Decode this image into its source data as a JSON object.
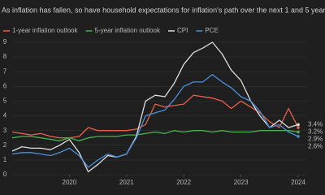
{
  "chart_data": {
    "type": "line",
    "subtitle": "As inflation has fallen, so have household expectations for inflation's path over the next 1 and 5 years.",
    "x": [
      2019,
      2019.17,
      2019.33,
      2019.5,
      2019.67,
      2019.83,
      2020,
      2020.17,
      2020.33,
      2020.5,
      2020.67,
      2020.83,
      2021,
      2021.17,
      2021.33,
      2021.5,
      2021.67,
      2021.83,
      2022,
      2022.17,
      2022.33,
      2022.5,
      2022.67,
      2022.83,
      2023,
      2023.17,
      2023.33,
      2023.5,
      2023.67,
      2023.83,
      2024
    ],
    "xlim": [
      2019,
      2024.15
    ],
    "xticks": [
      2020,
      2021,
      2022,
      2023,
      2024
    ],
    "ylim": [
      0,
      9
    ],
    "yticks": [
      0,
      1,
      2,
      3,
      4,
      5,
      6,
      7,
      8,
      9
    ],
    "grid": true,
    "series": [
      {
        "name": "1-year inflation outlook",
        "color": "#e8604c",
        "values": [
          2.9,
          2.8,
          2.7,
          2.8,
          2.6,
          2.5,
          2.5,
          2.6,
          3.2,
          3.0,
          3.0,
          3.0,
          3.0,
          3.1,
          3.4,
          4.8,
          4.6,
          4.7,
          4.8,
          5.4,
          5.3,
          5.2,
          5.0,
          4.5,
          5.0,
          4.6,
          4.2,
          3.6,
          3.2,
          4.5,
          3.2
        ],
        "value_labels": [
          null,
          null,
          null,
          null,
          null,
          null,
          null,
          null,
          null,
          null,
          null,
          null,
          null,
          null,
          null,
          null,
          null,
          null,
          null,
          null,
          null,
          null,
          null,
          null,
          null,
          null,
          null,
          null,
          null,
          null,
          "3.2%"
        ]
      },
      {
        "name": "5-year inflation outlook",
        "color": "#4caf50",
        "values": [
          2.5,
          2.6,
          2.6,
          2.5,
          2.4,
          2.3,
          2.5,
          2.3,
          2.5,
          2.6,
          2.6,
          2.6,
          2.7,
          2.7,
          2.8,
          2.9,
          2.8,
          3.0,
          2.9,
          3.0,
          3.0,
          2.9,
          3.0,
          2.9,
          2.9,
          2.9,
          3.0,
          3.0,
          3.0,
          3.0,
          2.9
        ],
        "value_labels": [
          null,
          null,
          null,
          null,
          null,
          null,
          null,
          null,
          null,
          null,
          null,
          null,
          null,
          null,
          null,
          null,
          null,
          null,
          null,
          null,
          null,
          null,
          null,
          null,
          null,
          null,
          null,
          null,
          null,
          null,
          "2.9%"
        ]
      },
      {
        "name": "CPI",
        "color": "#dddddd",
        "values": [
          1.6,
          1.9,
          1.8,
          1.8,
          1.7,
          2.0,
          2.4,
          1.5,
          0.2,
          0.7,
          1.3,
          1.2,
          1.4,
          2.6,
          5.0,
          5.4,
          5.3,
          6.2,
          7.5,
          8.3,
          8.6,
          9.0,
          8.2,
          7.1,
          6.4,
          5.0,
          4.0,
          3.2,
          3.7,
          3.2,
          3.4
        ],
        "value_labels": [
          null,
          null,
          null,
          null,
          null,
          null,
          null,
          null,
          null,
          null,
          null,
          null,
          null,
          null,
          null,
          null,
          null,
          null,
          null,
          null,
          null,
          null,
          null,
          null,
          null,
          null,
          null,
          null,
          null,
          null,
          "3.4%"
        ]
      },
      {
        "name": "PCE",
        "color": "#4a90d9",
        "values": [
          1.4,
          1.5,
          1.5,
          1.4,
          1.3,
          1.5,
          1.8,
          1.3,
          0.5,
          1.0,
          1.4,
          1.2,
          1.4,
          2.5,
          4.0,
          4.2,
          4.4,
          5.1,
          6.0,
          6.3,
          6.3,
          6.8,
          6.3,
          5.9,
          5.3,
          5.0,
          4.3,
          3.2,
          3.4,
          2.9,
          2.6
        ],
        "value_labels": [
          null,
          null,
          null,
          null,
          null,
          null,
          null,
          null,
          null,
          null,
          null,
          null,
          null,
          null,
          null,
          null,
          null,
          null,
          null,
          null,
          null,
          null,
          null,
          null,
          null,
          null,
          null,
          null,
          null,
          null,
          "2.6%"
        ]
      }
    ]
  }
}
